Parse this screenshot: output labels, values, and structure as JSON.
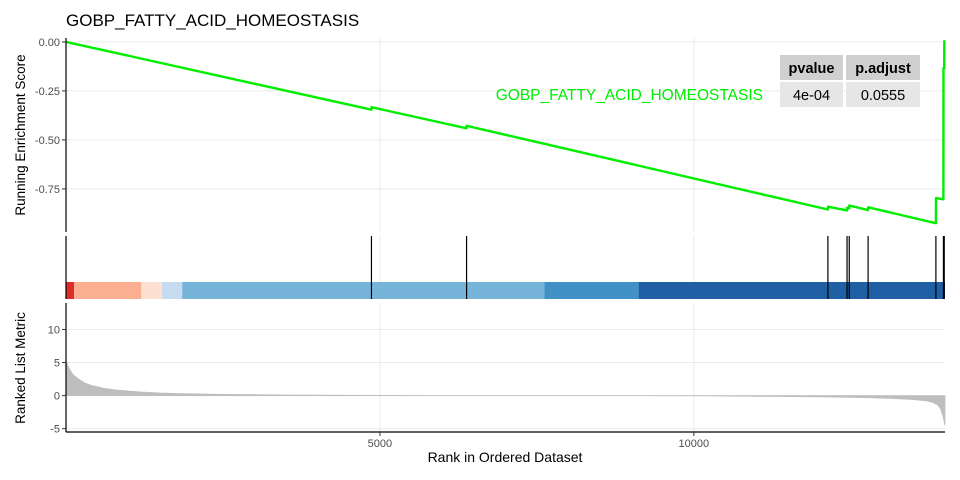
{
  "chart_data": {
    "type": "line",
    "title": "GOBP_FATTY_ACID_HOMEOSTASIS",
    "xlabel": "Rank in Ordered Dataset",
    "xlim": [
      0,
      14000
    ],
    "x_ticks": [
      5000,
      10000
    ],
    "x_tick_labels": [
      "5000",
      "10000"
    ],
    "grid": true,
    "panels": {
      "running_es": {
        "ylabel": "Running Enrichment Score",
        "ylim": [
          -0.97,
          0.02
        ],
        "y_ticks": [
          0,
          -0.25,
          -0.5,
          -0.75
        ],
        "y_tick_labels": [
          "0.00",
          "-0.25",
          "-0.50",
          "-0.75"
        ],
        "series": [
          {
            "name": "GOBP_FATTY_ACID_HOMEOSTASIS",
            "color": "#00ee00",
            "x": [
              0,
              4865,
              4866,
              6380,
              6381,
              12135,
              12136,
              12440,
              12441,
              12475,
              12476,
              12775,
              12776,
              13855,
              13856,
              13975,
              13976,
              13988,
              13989,
              14000
            ],
            "y": [
              0,
              -0.346,
              -0.333,
              -0.441,
              -0.428,
              -0.855,
              -0.841,
              -0.86,
              -0.846,
              -0.849,
              -0.835,
              -0.858,
              -0.844,
              -0.925,
              -0.797,
              -0.803,
              -0.133,
              -0.134,
              0.004,
              0.004
            ]
          }
        ]
      },
      "hits": {
        "gene_hit_ranks": [
          4865,
          6380,
          12135,
          12440,
          12475,
          12775,
          13855,
          13975,
          13988
        ],
        "heat_bands": [
          {
            "from": 0,
            "to": 130,
            "color": "#de2d26"
          },
          {
            "from": 130,
            "to": 1200,
            "color": "#fcae91"
          },
          {
            "from": 1200,
            "to": 1530,
            "color": "#fee0d2"
          },
          {
            "from": 1530,
            "to": 1850,
            "color": "#c6dbef"
          },
          {
            "from": 1850,
            "to": 7620,
            "color": "#77b4d9"
          },
          {
            "from": 7620,
            "to": 9120,
            "color": "#4191c6"
          },
          {
            "from": 9120,
            "to": 14000,
            "color": "#1f5fa3"
          }
        ]
      },
      "ranked_metric": {
        "ylabel": "Ranked List Metric",
        "ylim": [
          -5.5,
          14
        ],
        "y_ticks": [
          10,
          5,
          0,
          -5
        ],
        "y_tick_labels": [
          "10",
          "5",
          "0",
          "-5"
        ],
        "fill_color": "#bebebe",
        "x": [
          0,
          20,
          60,
          120,
          200,
          300,
          420,
          600,
          800,
          1000,
          1200,
          1500,
          1850,
          2500,
          3500,
          4500,
          5500,
          6500,
          7500,
          8500,
          9000,
          9400,
          10200,
          11000,
          11800,
          12400,
          12800,
          13200,
          13500,
          13700,
          13800,
          13880,
          13930,
          13970,
          14000
        ],
        "values": [
          5.4,
          4.8,
          3.9,
          3.1,
          2.5,
          1.9,
          1.5,
          1.1,
          0.85,
          0.7,
          0.55,
          0.4,
          0.3,
          0.18,
          0.1,
          0.05,
          0.02,
          0.0,
          0.0,
          0.0,
          0.0,
          -0.02,
          -0.05,
          -0.1,
          -0.16,
          -0.24,
          -0.32,
          -0.45,
          -0.6,
          -0.8,
          -1.0,
          -1.4,
          -2.0,
          -3.2,
          -4.5
        ]
      }
    },
    "table": {
      "columns": [
        "pvalue",
        "p.adjust"
      ],
      "rows": [
        [
          "4e-04",
          "0.0555"
        ]
      ]
    }
  }
}
